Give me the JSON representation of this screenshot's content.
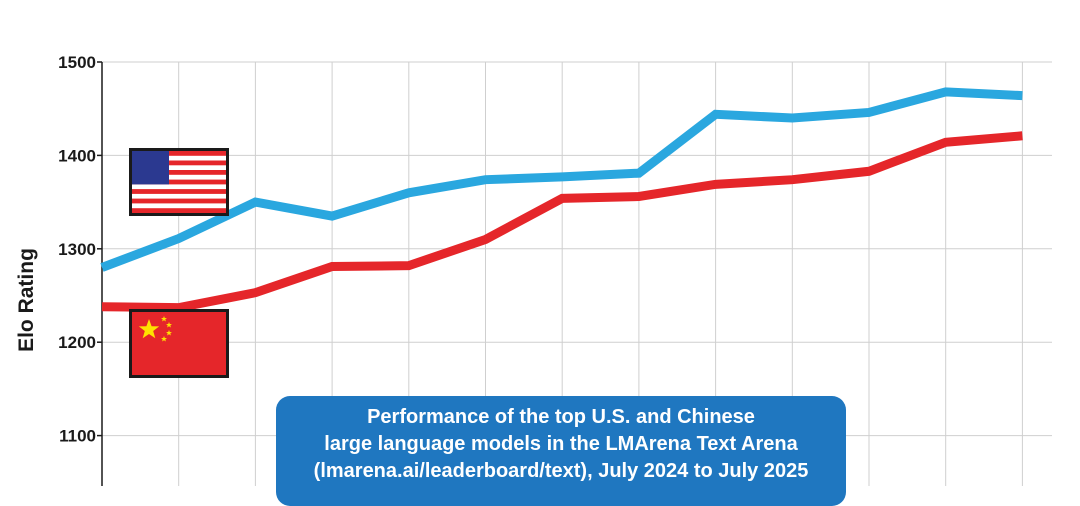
{
  "chart_data": {
    "type": "line",
    "title": "Performance of the top U.S. and Chinese",
    "caption_lines": [
      "Performance of the top U.S. and Chinese",
      "large language models in the LMArena Text Arena",
      "(lmarena.ai/leaderboard/text), July 2024 to July 2025"
    ],
    "ylabel": "Elo Rating",
    "xlabel": "",
    "ylim": [
      1050,
      1500
    ],
    "yticks": [
      1100,
      1200,
      1300,
      1400,
      1500
    ],
    "x": [
      0,
      1,
      2,
      3,
      4,
      5,
      6,
      7,
      8,
      9,
      10,
      11,
      12
    ],
    "grid": true,
    "legend": "flags at left",
    "series": [
      {
        "key": "us",
        "flag": "us-flag-icon",
        "color": "#2aa7df",
        "values": [
          1280,
          1311,
          1350,
          1335,
          1360,
          1374,
          1377,
          1381,
          1444,
          1440,
          1446,
          1468,
          1464
        ]
      },
      {
        "key": "china",
        "flag": "china-flag-icon",
        "color": "#e5262a",
        "values": [
          1238,
          1237,
          1253,
          1281,
          1282,
          1310,
          1354,
          1356,
          1369,
          1374,
          1383,
          1414,
          1421
        ]
      }
    ]
  },
  "colors": {
    "grid": "#cfcfcf",
    "axis": "#1a1a1a",
    "caption_bg": "#1f77c0"
  }
}
